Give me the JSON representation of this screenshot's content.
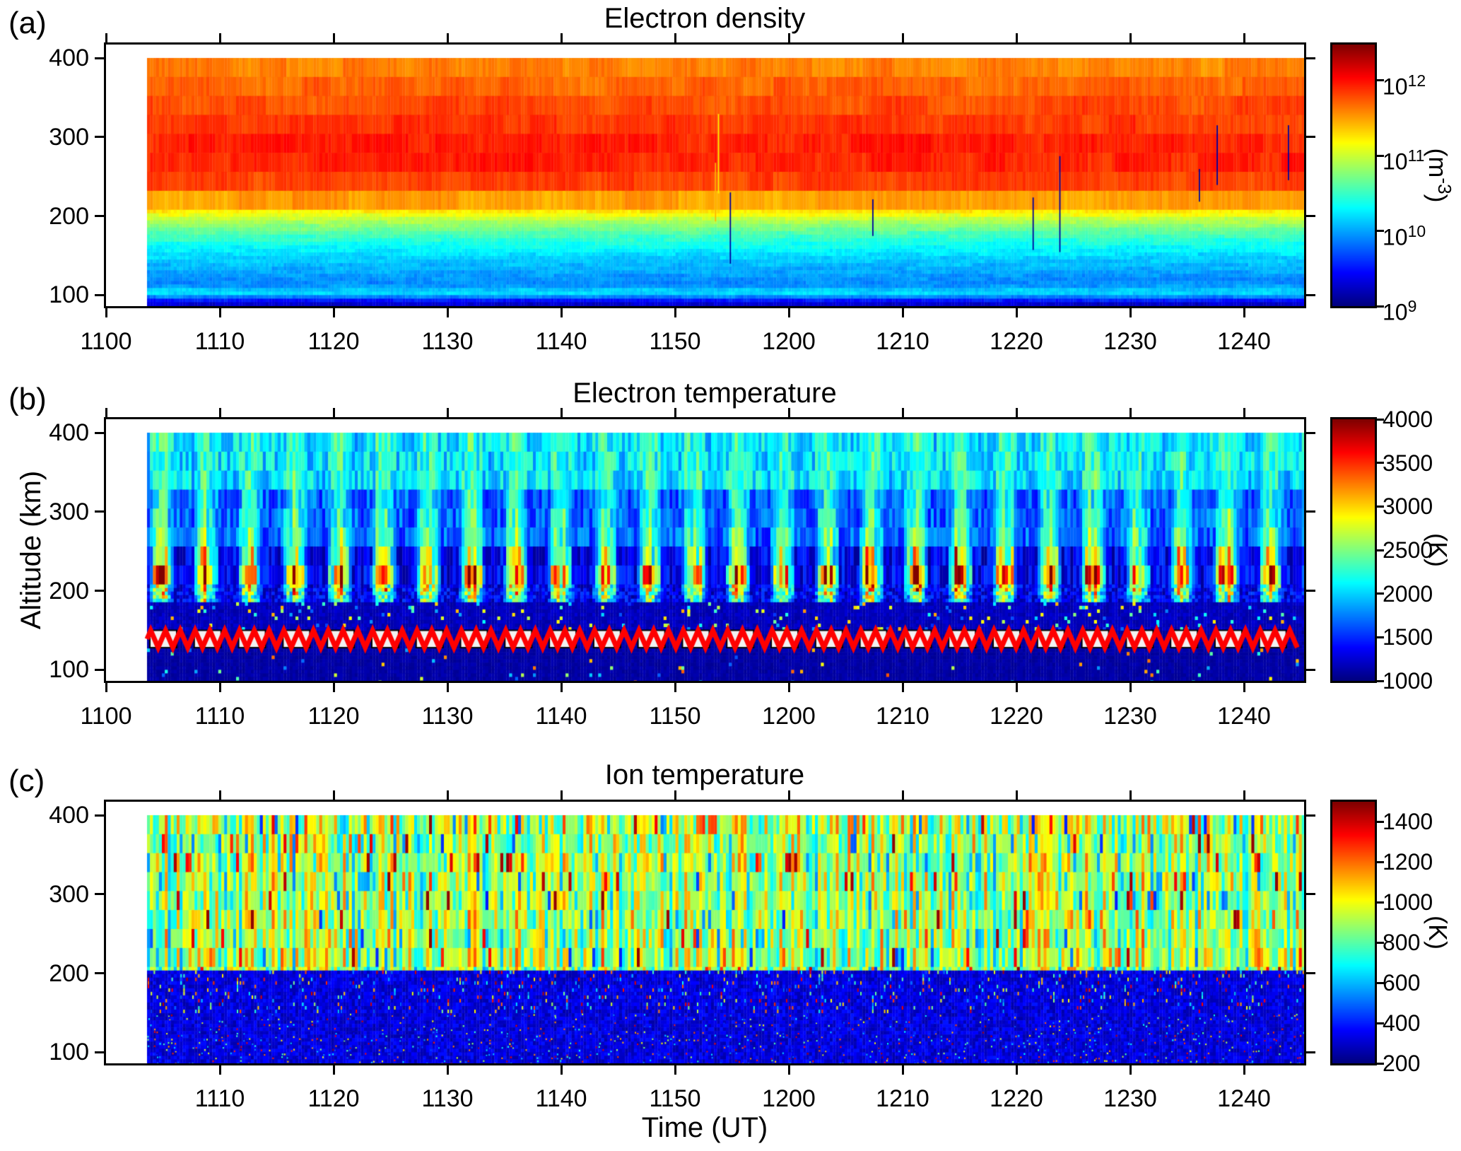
{
  "figure": {
    "xlabel": "Time (UT)",
    "ylabel": "Altitude (km)",
    "background": "#ffffff",
    "axis_color": "#000000"
  },
  "chart_data": [
    {
      "type": "heatmap",
      "panel": "a",
      "panel_label": "(a)",
      "title": "Electron density",
      "colormap": "jet",
      "x_tick_labels": [
        "1100",
        "1110",
        "1120",
        "1130",
        "1140",
        "1150",
        "1200",
        "1210",
        "1220",
        "1230",
        "1240"
      ],
      "y_tick_labels": [
        "400",
        "300",
        "200",
        "100"
      ],
      "x_range_hhmm": [
        "1100",
        "1245"
      ],
      "data_start_hhmm": "1104",
      "altitude_range_km": [
        78,
        400
      ],
      "colorbar": {
        "scale": "log",
        "range_m3": [
          "1e9",
          "3e12"
        ],
        "unit_base": "(m",
        "unit_sup": "-3",
        "unit_end": ")",
        "ticks": [
          {
            "base": "10",
            "sup": "12",
            "frac": 0.137
          },
          {
            "base": "10",
            "sup": "11",
            "frac": 0.4248
          },
          {
            "base": "10",
            "sup": "10",
            "frac": 0.7124
          },
          {
            "base": "10",
            "sup": "9",
            "frac": 1.0
          }
        ]
      },
      "profile_log10_m3": [
        [
          78,
          9.05
        ],
        [
          85,
          9.15
        ],
        [
          90,
          9.3
        ],
        [
          95,
          9.6
        ],
        [
          99,
          10.0
        ],
        [
          102,
          10.17
        ],
        [
          106,
          10.15
        ],
        [
          110,
          9.98
        ],
        [
          116,
          9.9
        ],
        [
          124,
          9.95
        ],
        [
          132,
          10.02
        ],
        [
          140,
          10.08
        ],
        [
          148,
          10.16
        ],
        [
          156,
          10.25
        ],
        [
          164,
          10.35
        ],
        [
          172,
          10.47
        ],
        [
          180,
          10.6
        ],
        [
          188,
          10.78
        ],
        [
          196,
          10.95
        ],
        [
          204,
          11.2
        ],
        [
          212,
          11.35
        ],
        [
          220,
          11.5
        ],
        [
          232,
          11.7
        ],
        [
          248,
          11.85
        ],
        [
          264,
          11.93
        ],
        [
          288,
          11.95
        ],
        [
          304,
          11.9
        ],
        [
          328,
          11.82
        ],
        [
          352,
          11.75
        ],
        [
          376,
          11.64
        ],
        [
          400,
          11.55
        ]
      ],
      "noise_log10": {
        "gate": 0.14,
        "column": 0.12
      },
      "spike_probability": 0.022
    },
    {
      "type": "heatmap",
      "panel": "b",
      "panel_label": "(b)",
      "title": "Electron temperature",
      "colormap": "jet",
      "x_tick_labels": [
        "1100",
        "1110",
        "1120",
        "1130",
        "1140",
        "1150",
        "1200",
        "1210",
        "1220",
        "1230",
        "1240"
      ],
      "y_tick_labels": [
        "400",
        "300",
        "200",
        "100"
      ],
      "x_range_hhmm": [
        "1100",
        "1245"
      ],
      "data_start_hhmm": "1104",
      "altitude_range_km": [
        78,
        400
      ],
      "colorbar": {
        "scale": "linear",
        "range_K": [
          1000,
          4000
        ],
        "unit_base": "(K)",
        "unit_sup": "",
        "unit_end": "",
        "ticks": [
          {
            "base": "4000",
            "sup": "",
            "frac": 0.0
          },
          {
            "base": "3500",
            "sup": "",
            "frac": 0.1667
          },
          {
            "base": "3000",
            "sup": "",
            "frac": 0.3333
          },
          {
            "base": "2500",
            "sup": "",
            "frac": 0.5
          },
          {
            "base": "2000",
            "sup": "",
            "frac": 0.6667
          },
          {
            "base": "1500",
            "sup": "",
            "frac": 0.8333
          },
          {
            "base": "1000",
            "sup": "",
            "frac": 1.0
          }
        ]
      },
      "background_K": {
        "below_150": 1110,
        "150_185": 1180,
        "185_255_base": 1320,
        "255_330_base": 1650,
        "above_330_base": 2020
      },
      "plume": {
        "period_min": 3.9,
        "duty": 0.58,
        "peak_alt_km": 222,
        "max_K": 3600
      },
      "zigzag": {
        "alt_km": 139,
        "amplitude_km": 10,
        "period_min": 1.3,
        "color": "#fe0000"
      },
      "marker_boxes": {
        "period_min": 3.9,
        "width_min": 2.36,
        "alt_span_km": [
          128,
          150
        ],
        "fill": "#f2f2f2",
        "border": "#000000"
      }
    },
    {
      "type": "heatmap",
      "panel": "c",
      "panel_label": "(c)",
      "title": "Ion temperature",
      "colormap": "jet",
      "x_tick_labels": [
        "1110",
        "1120",
        "1130",
        "1140",
        "1150",
        "1200",
        "1210",
        "1220",
        "1230",
        "1240"
      ],
      "y_tick_labels": [
        "400",
        "300",
        "200",
        "100"
      ],
      "x_range_hhmm": [
        "1103",
        "1245"
      ],
      "data_start_hhmm": "1104",
      "altitude_range_km": [
        78,
        400
      ],
      "colorbar": {
        "scale": "linear",
        "range_K": [
          200,
          1500
        ],
        "unit_base": "(K)",
        "unit_sup": "",
        "unit_end": "",
        "ticks": [
          {
            "base": "1400",
            "sup": "",
            "frac": 0.0769
          },
          {
            "base": "1200",
            "sup": "",
            "frac": 0.2308
          },
          {
            "base": "1000",
            "sup": "",
            "frac": 0.3846
          },
          {
            "base": "800",
            "sup": "",
            "frac": 0.5385
          },
          {
            "base": "600",
            "sup": "",
            "frac": 0.6923
          },
          {
            "base": "400",
            "sup": "",
            "frac": 0.8462
          },
          {
            "base": "200",
            "sup": "",
            "frac": 1.0
          }
        ]
      },
      "above_200_base_K": 880,
      "below_200_base_K": 320,
      "outlier_fraction": 0.14,
      "speckle_fraction": 0.15
    }
  ]
}
